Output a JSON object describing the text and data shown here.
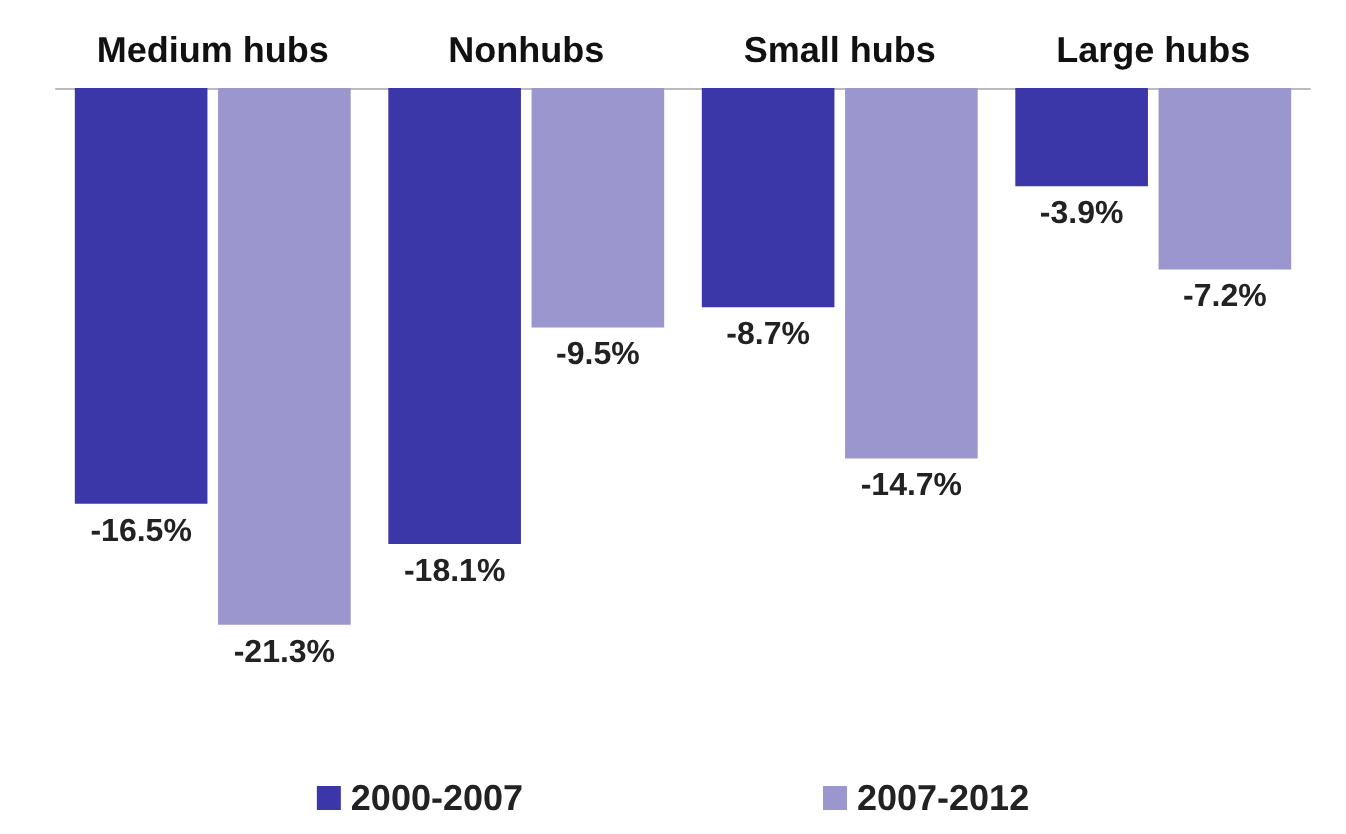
{
  "chart_data": {
    "type": "bar",
    "categories": [
      "Medium hubs",
      "Nonhubs",
      "Small hubs",
      "Large hubs"
    ],
    "series": [
      {
        "name": "2000-2007",
        "color": "#3b37a8",
        "values": [
          -16.5,
          -18.1,
          -8.7,
          -3.9
        ],
        "value_labels": [
          "-16.5%",
          "-18.1%",
          "-8.7%",
          "-3.9%"
        ]
      },
      {
        "name": "2007-2012",
        "color": "#9c96cf",
        "values": [
          -21.3,
          -9.5,
          -14.7,
          -7.2
        ],
        "value_labels": [
          "-21.3%",
          "-9.5%",
          "-14.7%",
          "-7.2%"
        ]
      }
    ],
    "legend": "bottom",
    "grid": false
  }
}
